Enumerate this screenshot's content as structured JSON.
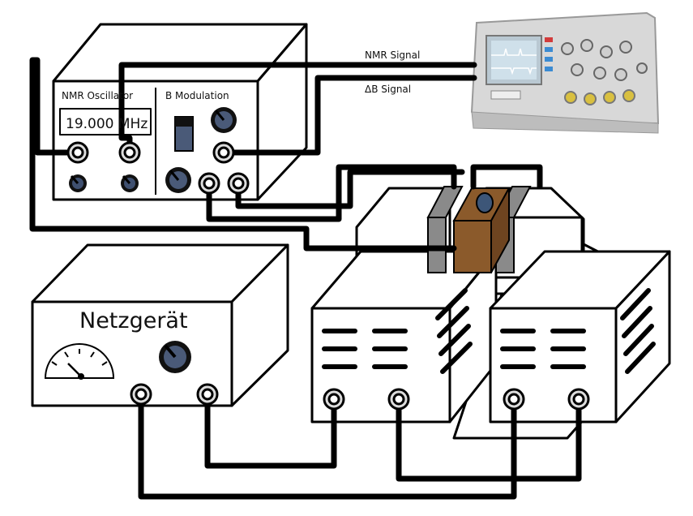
{
  "labels": {
    "oscillator": "NMR Oscillator",
    "modulation": "B Modulation",
    "frequency": "19.000 MHz",
    "nmr_signal": "NMR Signal",
    "delta_b_signal": "ΔB Signal",
    "power_supply": "Netzgerät"
  },
  "colors": {
    "line": "#000000",
    "knob": "#4a5a78",
    "pole_piece": "#8a8a8a",
    "sample_holder": "#8b5a2b",
    "sample": "#3d5678",
    "background": "#ffffff"
  }
}
